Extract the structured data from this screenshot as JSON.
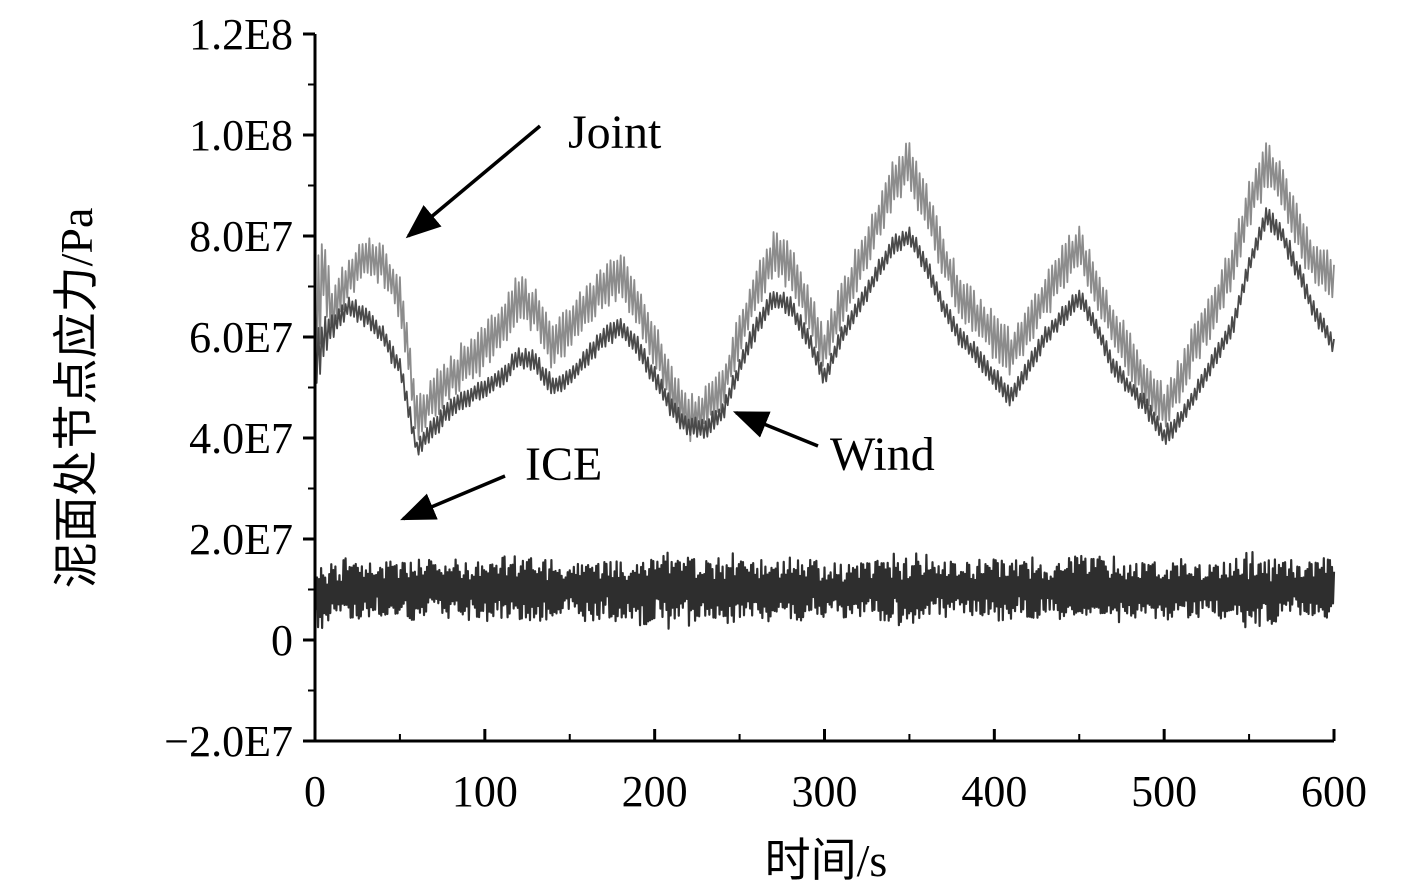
{
  "chart_data": {
    "type": "line",
    "xlabel": "时间/s",
    "ylabel": "泥面处节点应力/Pa",
    "xlim": [
      0,
      600
    ],
    "ylim": [
      -20000000,
      120000000
    ],
    "x_ticks": [
      0,
      100,
      200,
      300,
      400,
      500,
      600
    ],
    "x_tick_labels": [
      "0",
      "100",
      "200",
      "300",
      "400",
      "500",
      "600"
    ],
    "y_ticks": [
      -20000000,
      0,
      20000000,
      40000000,
      60000000,
      80000000,
      100000000,
      120000000
    ],
    "y_tick_labels": [
      "−2.0E7",
      "0",
      "2.0E7",
      "4.0E7",
      "6.0E7",
      "8.0E7",
      "1.0E8",
      "1.2E8"
    ],
    "grid": false,
    "legend": "none",
    "series": [
      {
        "name": "Joint",
        "color": "#8c8c8c",
        "x": [
          0,
          5,
          10,
          20,
          30,
          40,
          50,
          60,
          70,
          80,
          90,
          100,
          110,
          120,
          130,
          140,
          150,
          160,
          170,
          180,
          190,
          200,
          210,
          220,
          230,
          240,
          250,
          260,
          270,
          280,
          290,
          300,
          310,
          320,
          330,
          340,
          350,
          360,
          370,
          380,
          390,
          400,
          410,
          420,
          430,
          440,
          450,
          460,
          470,
          480,
          490,
          500,
          510,
          520,
          530,
          540,
          550,
          560,
          570,
          580,
          590,
          600
        ],
        "y": [
          60000000,
          75000000,
          65000000,
          72000000,
          76000000,
          74000000,
          68000000,
          44000000,
          48000000,
          52000000,
          55000000,
          58000000,
          62000000,
          68000000,
          65000000,
          58000000,
          62000000,
          66000000,
          70000000,
          72000000,
          66000000,
          58000000,
          50000000,
          44000000,
          46000000,
          50000000,
          60000000,
          70000000,
          76000000,
          74000000,
          66000000,
          58000000,
          66000000,
          74000000,
          82000000,
          90000000,
          94000000,
          86000000,
          76000000,
          68000000,
          64000000,
          60000000,
          57000000,
          62000000,
          68000000,
          74000000,
          78000000,
          70000000,
          62000000,
          56000000,
          50000000,
          46000000,
          52000000,
          60000000,
          66000000,
          74000000,
          86000000,
          94000000,
          90000000,
          80000000,
          74000000,
          72000000
        ],
        "amplitude": [
          30000000,
          16000000,
          12000000,
          8000000,
          8000000,
          8000000,
          8000000,
          9000000,
          9000000,
          9000000,
          9000000,
          9000000,
          9000000,
          9000000,
          9000000,
          9000000,
          9000000,
          9000000,
          9000000,
          9000000,
          9000000,
          9000000,
          9000000,
          9000000,
          9000000,
          9000000,
          9000000,
          9000000,
          9000000,
          9000000,
          9000000,
          9000000,
          9000000,
          9000000,
          9000000,
          10000000,
          10000000,
          9000000,
          9000000,
          9000000,
          9000000,
          9000000,
          9000000,
          9000000,
          9000000,
          9000000,
          9000000,
          9000000,
          9000000,
          9000000,
          9000000,
          9000000,
          9000000,
          9000000,
          9000000,
          9000000,
          9000000,
          10000000,
          9000000,
          9000000,
          9000000,
          9000000
        ]
      },
      {
        "name": "Wind",
        "color": "#4a4a4a",
        "x": [
          0,
          5,
          10,
          20,
          30,
          40,
          50,
          60,
          70,
          80,
          90,
          100,
          110,
          120,
          130,
          140,
          150,
          160,
          170,
          180,
          190,
          200,
          210,
          220,
          230,
          240,
          250,
          260,
          270,
          280,
          290,
          300,
          310,
          320,
          330,
          340,
          350,
          360,
          370,
          380,
          390,
          400,
          410,
          420,
          430,
          440,
          450,
          460,
          470,
          480,
          490,
          500,
          510,
          520,
          530,
          540,
          550,
          560,
          570,
          580,
          590,
          600
        ],
        "y": [
          55000000,
          60000000,
          62000000,
          66000000,
          64000000,
          60000000,
          54000000,
          38000000,
          42000000,
          46000000,
          48000000,
          50000000,
          52000000,
          56000000,
          55000000,
          50000000,
          52000000,
          56000000,
          60000000,
          62000000,
          58000000,
          52000000,
          46000000,
          42000000,
          42000000,
          45000000,
          54000000,
          62000000,
          68000000,
          66000000,
          60000000,
          52000000,
          60000000,
          66000000,
          72000000,
          78000000,
          80000000,
          74000000,
          66000000,
          60000000,
          56000000,
          52000000,
          48000000,
          54000000,
          60000000,
          64000000,
          68000000,
          62000000,
          54000000,
          50000000,
          46000000,
          40000000,
          44000000,
          50000000,
          56000000,
          62000000,
          74000000,
          84000000,
          80000000,
          72000000,
          64000000,
          58000000
        ],
        "amplitude": [
          14000000,
          8000000,
          5000000,
          4000000,
          4000000,
          4000000,
          4000000,
          4000000,
          4000000,
          4000000,
          4000000,
          4000000,
          4000000,
          4000000,
          4000000,
          4000000,
          4000000,
          4000000,
          4000000,
          4000000,
          4000000,
          4000000,
          4000000,
          4000000,
          4000000,
          4000000,
          4000000,
          4000000,
          4000000,
          4000000,
          4000000,
          4000000,
          4000000,
          4000000,
          4000000,
          4000000,
          4000000,
          4000000,
          4000000,
          4000000,
          4000000,
          4000000,
          4000000,
          4000000,
          4000000,
          4000000,
          4000000,
          4000000,
          4000000,
          4000000,
          4000000,
          4000000,
          4000000,
          4000000,
          4000000,
          4000000,
          4000000,
          4000000,
          4000000,
          4000000,
          4000000,
          4000000
        ]
      },
      {
        "name": "ICE",
        "color": "#2e2e2e",
        "x": [
          0,
          5,
          10,
          20,
          30,
          40,
          50,
          60,
          70,
          80,
          90,
          100,
          110,
          120,
          130,
          140,
          150,
          160,
          170,
          180,
          190,
          200,
          210,
          220,
          230,
          240,
          250,
          260,
          270,
          280,
          290,
          300,
          310,
          320,
          330,
          340,
          350,
          360,
          370,
          380,
          390,
          400,
          410,
          420,
          430,
          440,
          450,
          460,
          470,
          480,
          490,
          500,
          510,
          520,
          530,
          540,
          550,
          560,
          570,
          580,
          590,
          600
        ],
        "y": [
          10000000,
          8000000,
          10000000,
          10000000,
          10000000,
          10000000,
          10000000,
          10000000,
          10000000,
          10000000,
          10000000,
          10000000,
          10000000,
          10000000,
          10000000,
          10000000,
          10000000,
          10000000,
          10000000,
          10000000,
          10000000,
          10000000,
          10000000,
          10000000,
          10000000,
          10000000,
          10000000,
          10000000,
          10000000,
          10000000,
          10000000,
          10000000,
          10000000,
          10000000,
          10000000,
          10000000,
          10000000,
          10000000,
          10000000,
          10000000,
          10000000,
          10000000,
          10000000,
          10000000,
          10000000,
          10000000,
          10000000,
          10000000,
          10000000,
          10000000,
          10000000,
          10000000,
          10000000,
          10000000,
          10000000,
          10000000,
          10000000,
          10000000,
          10000000,
          10000000,
          10000000,
          10000000
        ],
        "amplitude": [
          12000000,
          14000000,
          12000000,
          11000000,
          12000000,
          11000000,
          12000000,
          11000000,
          11000000,
          12000000,
          11000000,
          11000000,
          12000000,
          13000000,
          12000000,
          11000000,
          11000000,
          12000000,
          11000000,
          12000000,
          13000000,
          16000000,
          15000000,
          13000000,
          12000000,
          12000000,
          14000000,
          12000000,
          11000000,
          12000000,
          12000000,
          11000000,
          11000000,
          11000000,
          12000000,
          13000000,
          14000000,
          13000000,
          12000000,
          11000000,
          11000000,
          12000000,
          12000000,
          12000000,
          11000000,
          12000000,
          13000000,
          12000000,
          12000000,
          11000000,
          12000000,
          11000000,
          12000000,
          11000000,
          12000000,
          12000000,
          14000000,
          13000000,
          12000000,
          11000000,
          12000000,
          11000000
        ]
      }
    ],
    "annotations": [
      {
        "text": "Joint",
        "target": [
          55,
          80000000
        ]
      },
      {
        "text": "Wind",
        "target": [
          248,
          45000000
        ]
      },
      {
        "text": "ICE",
        "target": [
          52,
          24000000
        ]
      }
    ]
  }
}
